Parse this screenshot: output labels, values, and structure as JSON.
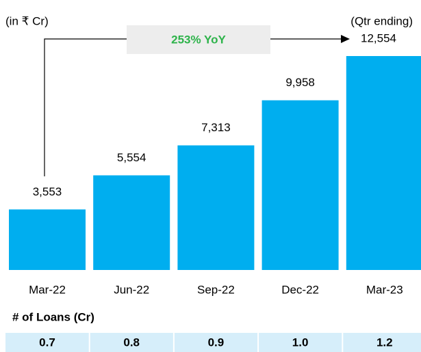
{
  "chart_data": {
    "type": "bar",
    "unit_label": "(in ₹ Cr)",
    "period_label": "(Qtr ending)",
    "annotation": "253% YoY",
    "categories": [
      "Mar-22",
      "Jun-22",
      "Sep-22",
      "Dec-22",
      "Mar-23"
    ],
    "values": [
      3553,
      5554,
      7313,
      9958,
      12554
    ],
    "value_labels": [
      "3,553",
      "5,554",
      "7,313",
      "9,958",
      "12,554"
    ],
    "color": "#00aeef"
  },
  "loans": {
    "title": "# of Loans (Cr)",
    "cells": [
      "0.7",
      "0.8",
      "0.9",
      "1.0",
      "1.2"
    ]
  }
}
